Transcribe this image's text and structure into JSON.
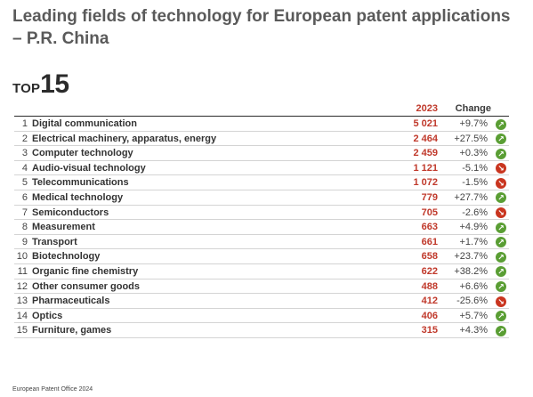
{
  "title": "Leading fields of technology for European patent applications – P.R. China",
  "top_word": "TOP",
  "top_number": "15",
  "footer": "European Patent Office 2024",
  "colors": {
    "value": "#c0392b",
    "up": "#5a9e34",
    "down": "#c9351f"
  },
  "chart_data": {
    "type": "table",
    "columns": [
      "2023",
      "Change"
    ],
    "rows": [
      {
        "rank": "1",
        "field": "Digital communication",
        "value": "5 021",
        "change": "+9.7%",
        "trend": "up"
      },
      {
        "rank": "2",
        "field": "Electrical machinery, apparatus, energy",
        "value": "2 464",
        "change": "+27.5%",
        "trend": "up"
      },
      {
        "rank": "3",
        "field": "Computer technology",
        "value": "2 459",
        "change": "+0.3%",
        "trend": "up"
      },
      {
        "rank": "4",
        "field": "Audio-visual technology",
        "value": "1 121",
        "change": "-5.1%",
        "trend": "down"
      },
      {
        "rank": "5",
        "field": "Telecommunications",
        "value": "1 072",
        "change": "-1.5%",
        "trend": "down"
      },
      {
        "rank": "6",
        "field": "Medical technology",
        "value": "779",
        "change": "+27.7%",
        "trend": "up"
      },
      {
        "rank": "7",
        "field": "Semiconductors",
        "value": "705",
        "change": "-2.6%",
        "trend": "down"
      },
      {
        "rank": "8",
        "field": "Measurement",
        "value": "663",
        "change": "+4.9%",
        "trend": "up"
      },
      {
        "rank": "9",
        "field": "Transport",
        "value": "661",
        "change": "+1.7%",
        "trend": "up"
      },
      {
        "rank": "10",
        "field": "Biotechnology",
        "value": "658",
        "change": "+23.7%",
        "trend": "up"
      },
      {
        "rank": "11",
        "field": "Organic fine chemistry",
        "value": "622",
        "change": "+38.2%",
        "trend": "up"
      },
      {
        "rank": "12",
        "field": "Other consumer goods",
        "value": "488",
        "change": "+6.6%",
        "trend": "up"
      },
      {
        "rank": "13",
        "field": "Pharmaceuticals",
        "value": "412",
        "change": "-25.6%",
        "trend": "down"
      },
      {
        "rank": "14",
        "field": "Optics",
        "value": "406",
        "change": "+5.7%",
        "trend": "up"
      },
      {
        "rank": "15",
        "field": "Furniture, games",
        "value": "315",
        "change": "+4.3%",
        "trend": "up"
      }
    ]
  }
}
